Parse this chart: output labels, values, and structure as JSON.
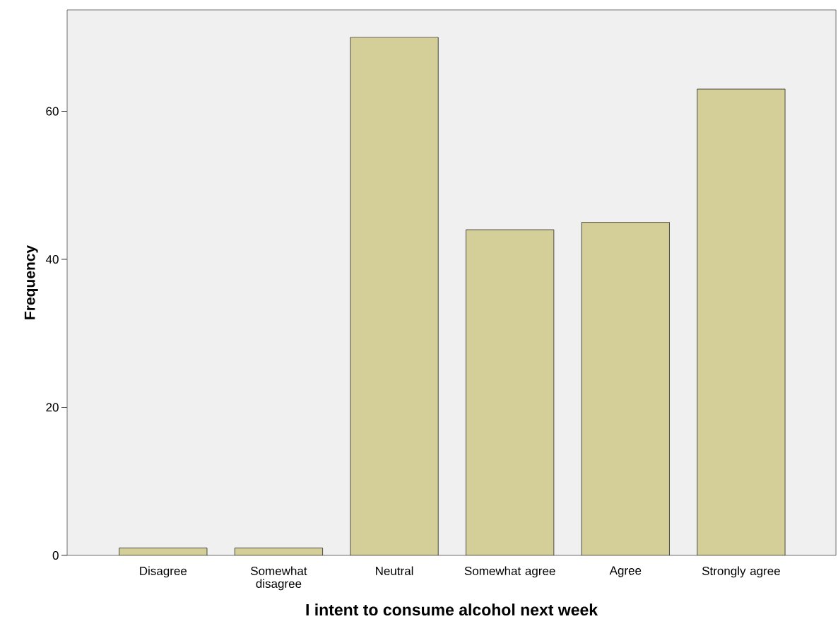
{
  "chart_data": {
    "type": "bar",
    "xlabel": "I intent to consume alcohol next week",
    "ylabel": "Frequency",
    "categories": [
      "Disagree",
      "Somewhat disagree",
      "Neutral",
      "Somewhat agree",
      "Agree",
      "Strongly agree"
    ],
    "values": [
      1,
      1,
      70,
      44,
      45,
      63
    ],
    "color": "#d4cf98",
    "ylim": [
      0,
      73.7
    ],
    "yticks": [
      0,
      20,
      40,
      60
    ],
    "grid": false
  }
}
